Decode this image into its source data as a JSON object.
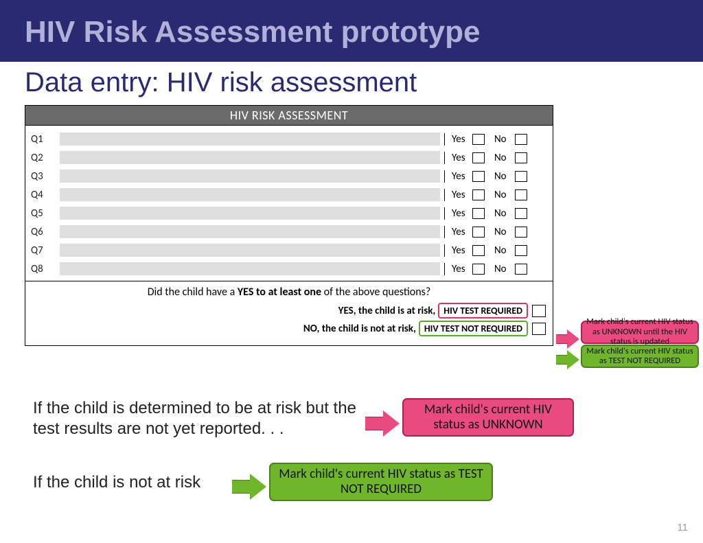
{
  "banner_title": "HIV Risk Assessment prototype",
  "subtitle": "Data entry: HIV risk assessment",
  "form": {
    "header": "HIV RISK ASSESSMENT",
    "questions": [
      "Q1",
      "Q2",
      "Q3",
      "Q4",
      "Q5",
      "Q6",
      "Q7",
      "Q8"
    ],
    "yes": "Yes",
    "no": "No",
    "footer_prompt_1": "Did the child have a ",
    "footer_prompt_bold": "YES to at least one",
    "footer_prompt_2": " of the above questions?",
    "result_yes_label": "YES, the child is at risk,",
    "result_yes_box": "HIV TEST REQUIRED",
    "result_no_label": "NO, the child is not at risk,",
    "result_no_box": "HIV TEST NOT REQUIRED"
  },
  "callouts": {
    "small_pink": "Mark child's current HIV status as UNKNOWN until the HIV status is updated",
    "small_green": "Mark child's current HIV status as TEST NOT REQUIRED",
    "big_pink": "Mark child's current HIV status as UNKNOWN",
    "big_green": "Mark child's current HIV status as TEST NOT REQUIRED"
  },
  "body": {
    "line1": "If the child is determined to be at risk but the test results are not yet reported. . .",
    "line2": "If the child is not at risk"
  },
  "page_number": "11",
  "colors": {
    "banner_bg": "#2a2a72",
    "banner_fg": "#b0b0d8",
    "subtitle_fg": "#2a2a72",
    "form_header_bg": "#6b6b6b",
    "row_bar": "#dedede",
    "pink": "#e94b80",
    "pink_border": "#a8254f",
    "green": "#70b62c",
    "green_border": "#4a7f1a"
  }
}
